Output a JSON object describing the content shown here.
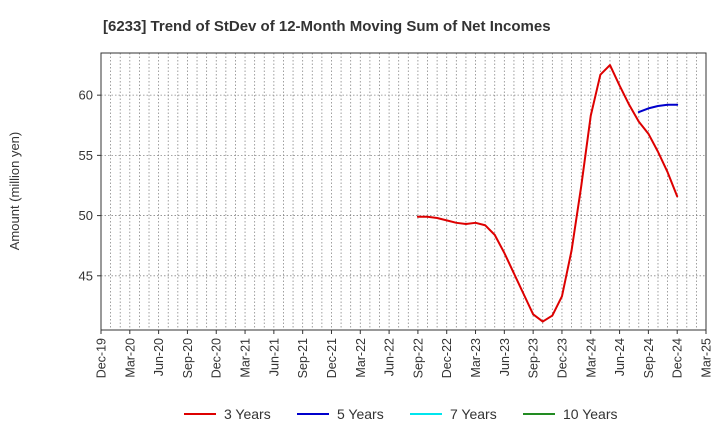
{
  "chart_data": {
    "type": "line",
    "title": "[6233]  Trend of StDev of 12-Month Moving Sum of Net Incomes",
    "xlabel": "",
    "ylabel": "Amount (million yen)",
    "x_ticks": [
      "Dec-19",
      "Mar-20",
      "Jun-20",
      "Sep-20",
      "Dec-20",
      "Mar-21",
      "Jun-21",
      "Sep-21",
      "Dec-21",
      "Mar-22",
      "Jun-22",
      "Sep-22",
      "Dec-22",
      "Mar-23",
      "Jun-23",
      "Sep-23",
      "Dec-23",
      "Mar-24",
      "Jun-24",
      "Sep-24",
      "Dec-24",
      "Mar-25"
    ],
    "xlim": [
      "2019-12",
      "2025-03"
    ],
    "y_ticks": [
      45,
      50,
      55,
      60
    ],
    "ylim": [
      40.5,
      63.5
    ],
    "grid": true,
    "legend_position": "bottom",
    "series": [
      {
        "name": "3 Years",
        "color": "#dd0000",
        "points": [
          [
            "2022-09",
            49.9
          ],
          [
            "2022-10",
            49.9
          ],
          [
            "2022-11",
            49.8
          ],
          [
            "2022-12",
            49.6
          ],
          [
            "2023-01",
            49.4
          ],
          [
            "2023-02",
            49.3
          ],
          [
            "2023-03",
            49.4
          ],
          [
            "2023-04",
            49.2
          ],
          [
            "2023-05",
            48.4
          ],
          [
            "2023-06",
            46.9
          ],
          [
            "2023-07",
            45.2
          ],
          [
            "2023-08",
            43.5
          ],
          [
            "2023-09",
            41.8
          ],
          [
            "2023-10",
            41.2
          ],
          [
            "2023-11",
            41.7
          ],
          [
            "2023-12",
            43.3
          ],
          [
            "2024-01",
            47.1
          ],
          [
            "2024-02",
            52.4
          ],
          [
            "2024-03",
            58.3
          ],
          [
            "2024-04",
            61.7
          ],
          [
            "2024-05",
            62.5
          ],
          [
            "2024-06",
            60.8
          ],
          [
            "2024-07",
            59.2
          ],
          [
            "2024-08",
            57.8
          ],
          [
            "2024-09",
            56.8
          ],
          [
            "2024-10",
            55.3
          ],
          [
            "2024-11",
            53.6
          ],
          [
            "2024-12",
            51.6
          ]
        ]
      },
      {
        "name": "5 Years",
        "color": "#0000cc",
        "points": [
          [
            "2024-08",
            58.6
          ],
          [
            "2024-09",
            58.9
          ],
          [
            "2024-10",
            59.1
          ],
          [
            "2024-11",
            59.2
          ],
          [
            "2024-12",
            59.2
          ]
        ]
      },
      {
        "name": "7 Years",
        "color": "#00e5ee",
        "points": []
      },
      {
        "name": "10 Years",
        "color": "#228b22",
        "points": []
      }
    ]
  }
}
